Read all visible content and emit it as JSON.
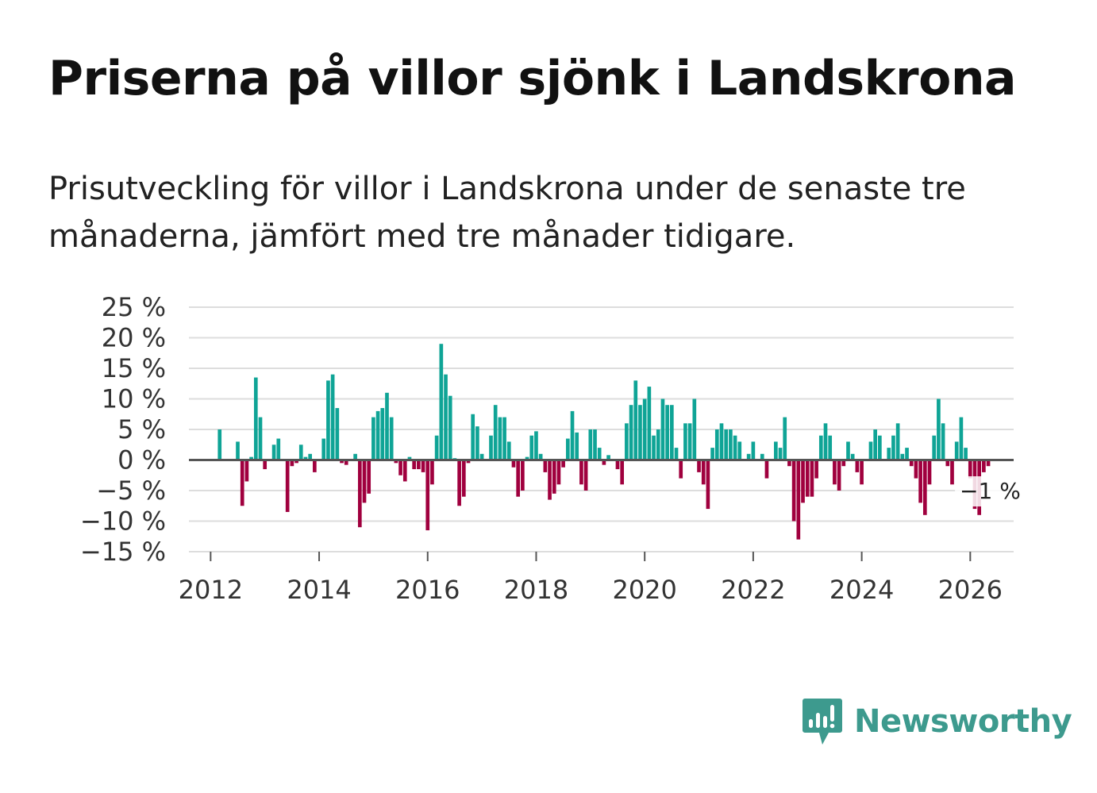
{
  "title": "Priserna på villor sjönk i Landskrona",
  "subtitle": "Prisutveckling för villor i Landskrona under de senaste tre månaderna, jämfört med tre månader tidigare.",
  "brand": {
    "name": "Newsworthy",
    "icon": "newsworthy-logo-icon",
    "color": "#3d9a8e"
  },
  "colors": {
    "positive": "#0fa496",
    "negative": "#a0003e",
    "grid": "#dddddd",
    "zero": "#555555"
  },
  "chart_data": {
    "type": "bar",
    "title": "Priserna på villor sjönk i Landskrona",
    "xlabel": "",
    "ylabel": "",
    "ylim": [
      -15,
      25
    ],
    "xlim": [
      2011.6,
      2026.8
    ],
    "y_ticks": [
      "25 %",
      "20 %",
      "15 %",
      "10 %",
      "5 %",
      "0 %",
      "−5 %",
      "−10 %",
      "−15 %"
    ],
    "y_tick_values": [
      25,
      20,
      15,
      10,
      5,
      0,
      -5,
      -10,
      -15
    ],
    "x_ticks": [
      "2012",
      "2014",
      "2016",
      "2018",
      "2020",
      "2022",
      "2024",
      "2026"
    ],
    "x_tick_values": [
      2012,
      2014,
      2016,
      2018,
      2020,
      2022,
      2024,
      2026
    ],
    "start": 2012.0,
    "step": 0.08333,
    "values": [
      0,
      0,
      5,
      0,
      0,
      0,
      3,
      -7.5,
      -3.5,
      0.5,
      13.5,
      7,
      -1.5,
      0,
      2.5,
      3.5,
      0,
      -8.5,
      -1,
      -0.5,
      2.5,
      0.5,
      1,
      -2,
      0,
      3.5,
      13,
      14,
      8.5,
      -0.5,
      -0.8,
      0,
      1,
      -11,
      -7,
      -5.5,
      7,
      8,
      8.5,
      11,
      7,
      -0.5,
      -2.5,
      -3.5,
      0.5,
      -1.5,
      -1.5,
      -2,
      -11.5,
      -4,
      4,
      19,
      14,
      10.5,
      0.3,
      -7.5,
      -6,
      -0.5,
      7.5,
      5.5,
      1,
      0,
      4,
      9,
      7,
      7,
      3,
      -1.2,
      -6,
      -5,
      0.5,
      4,
      4.7,
      1,
      -2,
      -6.5,
      -5.5,
      -4,
      -1.2,
      3.5,
      8,
      4.5,
      -4,
      -5,
      5,
      5,
      2,
      -0.8,
      0.8,
      0,
      -1.5,
      -4,
      6,
      9,
      13,
      9,
      10,
      12,
      4,
      5,
      10,
      9,
      9,
      2,
      -3,
      6,
      6,
      10,
      -2,
      -4,
      -8,
      2,
      5,
      6,
      5,
      5,
      4,
      3,
      0,
      1,
      3,
      0,
      1,
      -3,
      0,
      3,
      2,
      7,
      -1,
      -10,
      -13,
      -7,
      -6,
      -6,
      -3,
      4,
      6,
      4,
      -4,
      -5,
      -1,
      3,
      1,
      -2,
      -4,
      0,
      3,
      5,
      4,
      0,
      2,
      4,
      6,
      1,
      2,
      -1,
      -3,
      -7,
      -9,
      -4,
      4,
      10,
      6,
      -1,
      -4,
      3,
      7,
      2,
      -3,
      -8,
      -9,
      -2,
      -1
    ],
    "annotation": {
      "label": "−1 %",
      "value": -1
    }
  }
}
